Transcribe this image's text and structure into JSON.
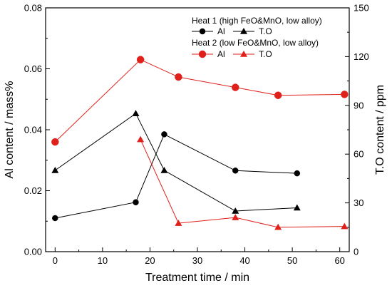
{
  "chart_data": {
    "type": "line",
    "xlabel": "Treatment time / min",
    "ylabel_left": "Al content / mass%",
    "ylabel_right": "T.O content / ppm",
    "xlim": [
      -2,
      62
    ],
    "ylim_left": [
      0,
      0.08
    ],
    "ylim_right": [
      0,
      150
    ],
    "x_ticks": [
      "0",
      "10",
      "20",
      "30",
      "40",
      "50",
      "60"
    ],
    "y_left_ticks": [
      "0.00",
      "0.02",
      "0.04",
      "0.06",
      "0.08"
    ],
    "y_right_ticks": [
      "0",
      "30",
      "60",
      "90",
      "120",
      "150"
    ],
    "grid": false,
    "legend_placement": "top-right",
    "legend": {
      "heat1_title": "Heat 1 (high FeO&MnO, low alloy)",
      "heat2_title": "Heat 2 (low FeO&MnO, low alloy)",
      "al_label": "Al",
      "to_label": "T.O"
    },
    "colors": {
      "heat1": "#000000",
      "heat2": "#e0201b"
    },
    "series": [
      {
        "name": "Al",
        "heat": "Heat 1",
        "axis": "left",
        "marker": "circle",
        "color": "#000000",
        "x": [
          0,
          17,
          23,
          38,
          51
        ],
        "y": [
          0.011,
          0.0162,
          0.0385,
          0.0266,
          0.0257
        ]
      },
      {
        "name": "T.O",
        "heat": "Heat 1",
        "axis": "right",
        "marker": "triangle",
        "color": "#000000",
        "x": [
          0,
          17,
          23,
          38,
          51
        ],
        "y": [
          50,
          85,
          50,
          25,
          27
        ]
      },
      {
        "name": "Al",
        "heat": "Heat 2",
        "axis": "left",
        "marker": "circle",
        "color": "#e0201b",
        "x": [
          0,
          18,
          26,
          38,
          47,
          61
        ],
        "y": [
          0.036,
          0.063,
          0.0573,
          0.0539,
          0.0513,
          0.0516
        ]
      },
      {
        "name": "T.O",
        "heat": "Heat 2",
        "axis": "right",
        "marker": "triangle",
        "color": "#e0201b",
        "x": [
          18,
          26,
          38,
          47,
          61
        ],
        "y": [
          69,
          17.5,
          21,
          15,
          15.5
        ]
      }
    ]
  }
}
